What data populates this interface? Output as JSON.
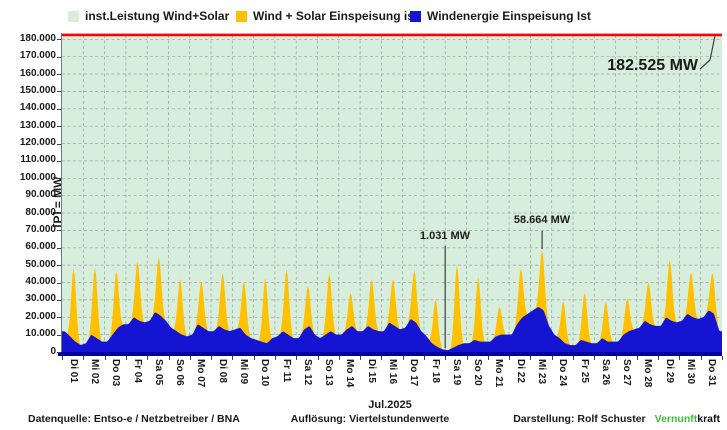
{
  "legend": {
    "items": [
      {
        "label": "inst.Leistung Wind+Solar",
        "color": "#d7eedd"
      },
      {
        "label": "Wind + Solar Einspeisung ist",
        "color": "#ffc000"
      },
      {
        "label": "Windenergie Einspeisung Ist",
        "color": "#1414d2"
      }
    ]
  },
  "chart_data": {
    "type": "area",
    "title": "",
    "ylabel": "[P] =  MW",
    "xlabel": "Jul.2025",
    "ylim": [
      0,
      180000
    ],
    "ytick_step": 10000,
    "ytick_labels": [
      "0",
      "10.000",
      "20.000",
      "30.000",
      "40.000",
      "50.000",
      "60.000",
      "70.000",
      "80.000",
      "90.000",
      "100.000",
      "110.000",
      "120.000",
      "130.000",
      "140.000",
      "150.000",
      "160.000",
      "170.000",
      "180.000"
    ],
    "grid": "dashed gray, horizontal every 10000 MW and vertical every day",
    "legend_position": "top",
    "x_tick_rotation": 90,
    "categories": [
      "Di 01",
      "Mi 02",
      "Do 03",
      "Fr 04",
      "Sa 05",
      "So 06",
      "Mo 07",
      "Di 08",
      "Mi 09",
      "Do 10",
      "Fr 11",
      "Sa 12",
      "So 13",
      "Mo 14",
      "Di 15",
      "Mi 16",
      "Do 17",
      "Fr 18",
      "Sa 19",
      "So 20",
      "Mo 21",
      "Di 22",
      "Mi 23",
      "Do 24",
      "Fr 25",
      "Sa 26",
      "So 27",
      "Mo 28",
      "Di 29",
      "Mi 30",
      "Do 31"
    ],
    "installed_capacity_mw": 182525,
    "series": [
      {
        "name": "inst.Leistung Wind+Solar",
        "render": "constant-area",
        "color": "#d7eedd",
        "line_color": "#ff0000",
        "value_mw": 182525
      },
      {
        "name": "Wind + Solar Einspeisung ist",
        "render": "area",
        "color": "#ffc000",
        "daily_peak_mw": [
          48000,
          48500,
          46500,
          52000,
          54500,
          42000,
          40500,
          45500,
          40500,
          42500,
          47500,
          38000,
          45000,
          34000,
          42000,
          42000,
          47000,
          30500,
          50000,
          43000,
          26000,
          48000,
          58664,
          29000,
          34000,
          29000,
          31000,
          40000,
          53000,
          46000,
          45500
        ]
      },
      {
        "name": "Windenergie Einspeisung Ist",
        "render": "area",
        "color": "#1414d2",
        "daily_profile_mw": [
          [
            12000,
            9000,
            6000,
            4000
          ],
          [
            5000,
            10000,
            8000,
            6000
          ],
          [
            6000,
            10000,
            14000,
            16000
          ],
          [
            16000,
            20000,
            18000,
            17000
          ],
          [
            18000,
            23000,
            21000,
            18000
          ],
          [
            14000,
            12000,
            10000,
            9000
          ],
          [
            10000,
            16000,
            14000,
            12000
          ],
          [
            12000,
            15000,
            13000,
            12000
          ],
          [
            13000,
            14000,
            10000,
            8000
          ],
          [
            7000,
            6000,
            5000,
            8000
          ],
          [
            9000,
            12000,
            10000,
            8000
          ],
          [
            8000,
            13000,
            15000,
            10000
          ],
          [
            8000,
            10000,
            12000,
            10000
          ],
          [
            10000,
            13000,
            15000,
            12000
          ],
          [
            12000,
            15000,
            13000,
            12000
          ],
          [
            12000,
            17000,
            15000,
            13000
          ],
          [
            14000,
            19000,
            17000,
            12000
          ],
          [
            9000,
            5000,
            3000,
            1500
          ],
          [
            1031,
            2500,
            4000,
            5000
          ],
          [
            5000,
            7000,
            6000,
            6000
          ],
          [
            6000,
            9000,
            10000,
            10000
          ],
          [
            10000,
            16000,
            20000,
            22000
          ],
          [
            24000,
            26000,
            24000,
            15000
          ],
          [
            10000,
            8000,
            5000,
            4000
          ],
          [
            4000,
            7000,
            6000,
            5000
          ],
          [
            5000,
            8000,
            6000,
            6000
          ],
          [
            6000,
            10000,
            12000,
            13000
          ],
          [
            14000,
            18000,
            16000,
            15000
          ],
          [
            15000,
            20000,
            18000,
            17000
          ],
          [
            18000,
            22000,
            20000,
            19000
          ],
          [
            20000,
            24000,
            22000,
            12000
          ]
        ]
      }
    ],
    "annotations": [
      {
        "text": "182.525 MW",
        "value_mw": 182525,
        "target": "installed capacity line"
      },
      {
        "text": "1.031 MW",
        "value_mw": 1031,
        "day": 19,
        "target": "minimum feed-in at start of Sa 19"
      },
      {
        "text": "58.664 MW",
        "value_mw": 58664,
        "day": 23,
        "target": "peak wind+solar feed-in on Mi 23"
      }
    ]
  },
  "footer": {
    "source": "Datenquelle:  Entso-e  / Netzbetreiber / BNA",
    "resolution": "Auflösung: Viertelstundenwerte",
    "credit": "Darstellung:  Rolf Schuster",
    "brand": {
      "green": "Vernunft",
      "black": "kraft"
    }
  }
}
